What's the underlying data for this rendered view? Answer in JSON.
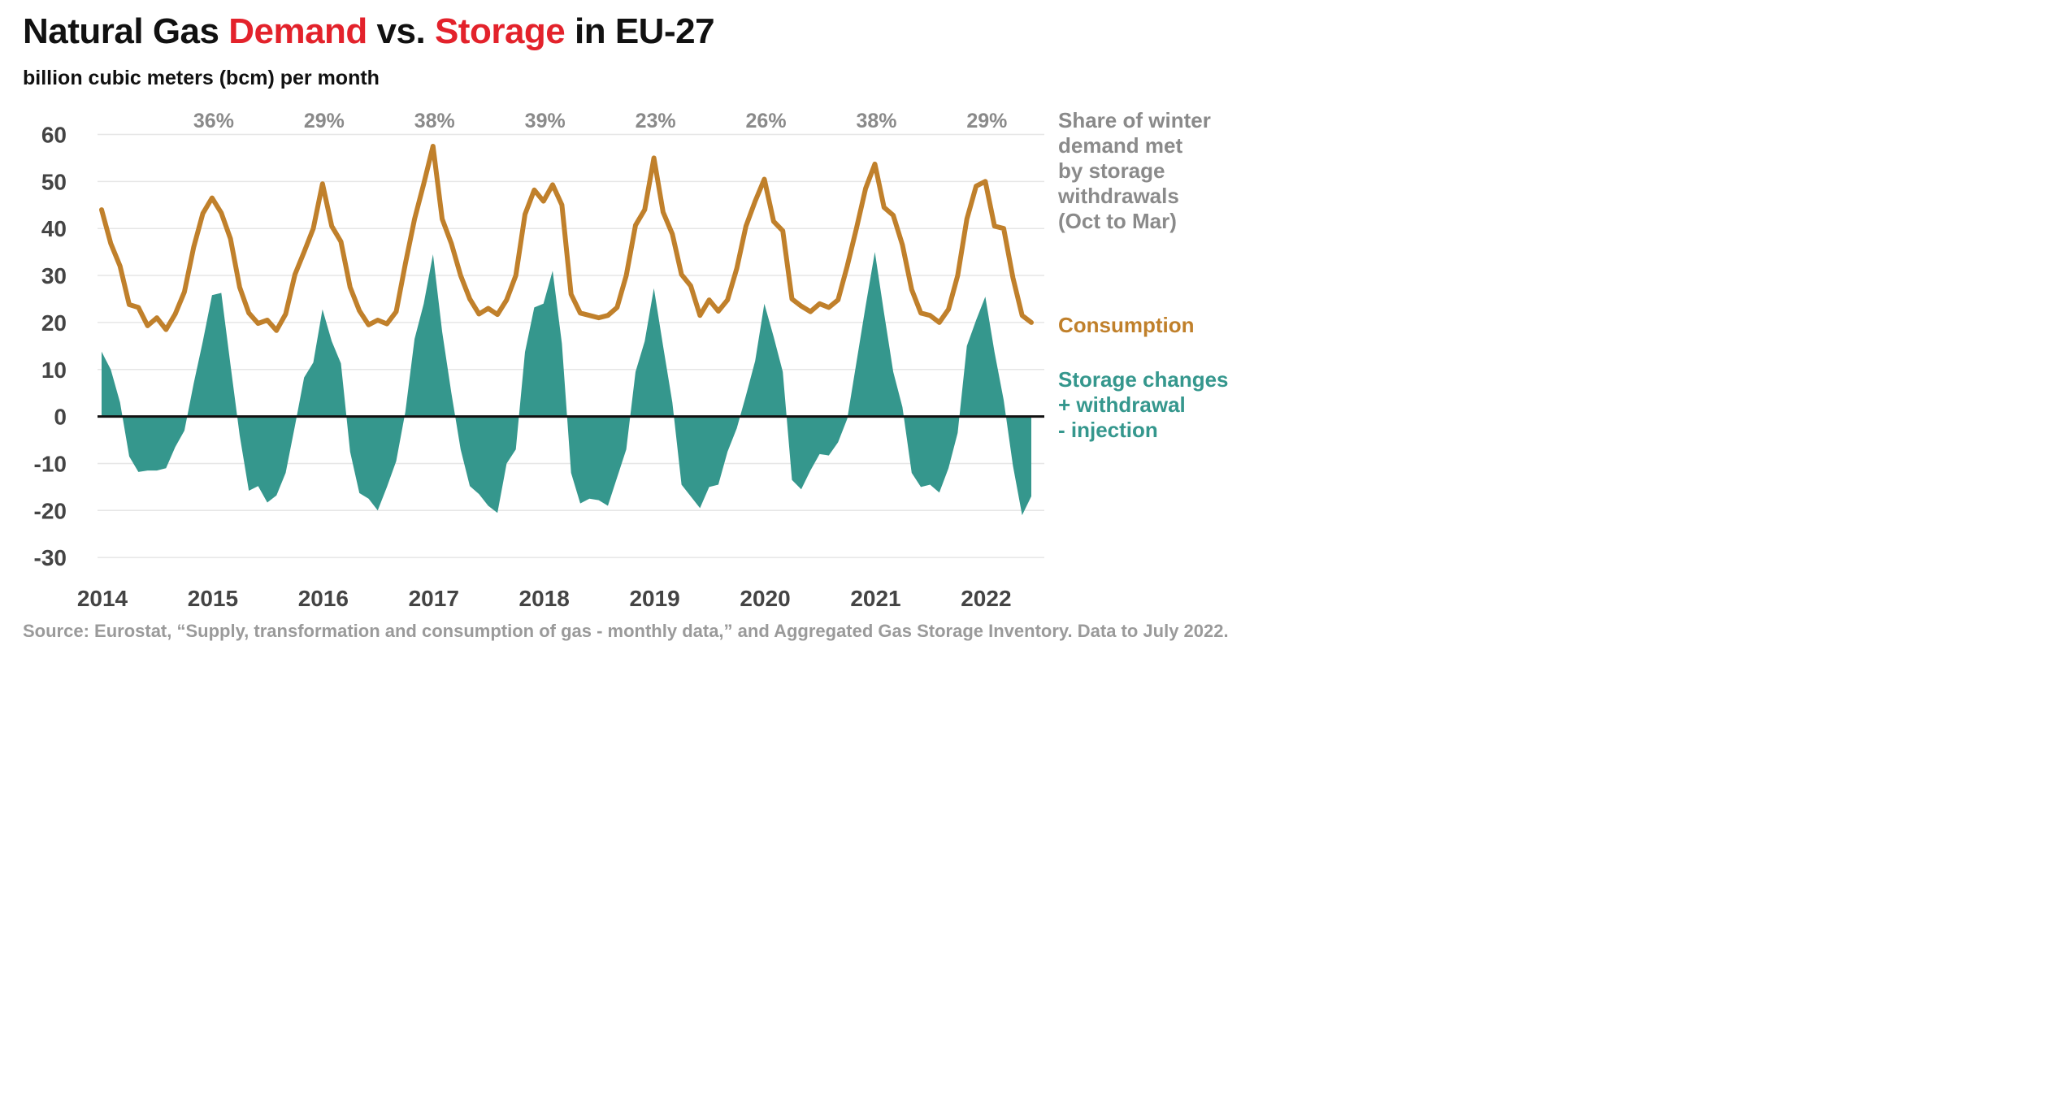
{
  "title": {
    "part1": "Natural Gas ",
    "demand": "Demand",
    "part2": " vs. ",
    "storage": "Storage",
    "part3": " in EU-27"
  },
  "subtitle": "billion cubic meters (bcm) per month",
  "colors": {
    "consumption": "#c0802b",
    "storage": "#35978d",
    "highlight": "#e3222b",
    "share_text": "#8a8a8a",
    "grid": "#e6e6e6"
  },
  "legend": {
    "share_label": "Share of winter\ndemand met\nby storage\nwithdrawals\n(Oct to Mar)",
    "consumption_label": "Consumption",
    "storage_label": "Storage changes\n+ withdrawal\n- injection"
  },
  "source": "Source: Eurostat, “Supply, transformation and consumption of gas - monthly data,” and Aggregated Gas Storage Inventory. Data to July 2022.",
  "chart_data": {
    "type": "line",
    "y_ticks": [
      "60",
      "50",
      "40",
      "30",
      "20",
      "10",
      "0",
      "-10",
      "-20",
      "-30"
    ],
    "ylim": [
      -30,
      60
    ],
    "x_ticks": [
      "2014",
      "2015",
      "2016",
      "2017",
      "2018",
      "2019",
      "2020",
      "2021",
      "2022"
    ],
    "x_start": "2014-01",
    "x_end": "2022-07",
    "winter_share": [
      {
        "winter": "2014-15",
        "label": "36%"
      },
      {
        "winter": "2015-16",
        "label": "29%"
      },
      {
        "winter": "2016-17",
        "label": "38%"
      },
      {
        "winter": "2017-18",
        "label": "39%"
      },
      {
        "winter": "2018-19",
        "label": "23%"
      },
      {
        "winter": "2019-20",
        "label": "26%"
      },
      {
        "winter": "2020-21",
        "label": "38%"
      },
      {
        "winter": "2021-22",
        "label": "29%"
      }
    ],
    "series": [
      {
        "name": "Consumption",
        "type": "line",
        "values": [
          44.0,
          36.8,
          32.0,
          23.8,
          23.2,
          19.3,
          21.0,
          18.5,
          21.8,
          26.5,
          36.0,
          43.2,
          46.5,
          43.3,
          37.8,
          27.5,
          22.0,
          19.8,
          20.5,
          18.3,
          21.8,
          30.2,
          35.0,
          40.0,
          49.5,
          40.5,
          37.2,
          27.5,
          22.5,
          19.5,
          20.5,
          19.7,
          22.3,
          32.5,
          42.0,
          49.5,
          57.5,
          42.0,
          36.8,
          30.0,
          25.0,
          21.8,
          23.0,
          21.7,
          24.8,
          30.0,
          43.0,
          48.2,
          45.8,
          49.3,
          45.0,
          26.0,
          22.0,
          21.5,
          21.0,
          21.5,
          23.2,
          30.0,
          40.7,
          44.0,
          55.0,
          43.5,
          38.8,
          30.2,
          27.8,
          21.5,
          24.8,
          22.4,
          24.8,
          31.5,
          40.5,
          45.8,
          50.5,
          41.5,
          39.5,
          25.0,
          23.5,
          22.3,
          24.0,
          23.2,
          24.8,
          32.0,
          40.0,
          48.5,
          53.7,
          44.5,
          42.8,
          36.5,
          27.0,
          22.0,
          21.5,
          20.0,
          22.8,
          30.0,
          42.0,
          49.0,
          50.0,
          40.5,
          40.0,
          29.5,
          21.5,
          20.0
        ]
      },
      {
        "name": "Storage changes + withdrawal - injection",
        "type": "area",
        "values": [
          13.8,
          10.0,
          3.0,
          -8.5,
          -11.8,
          -11.5,
          -11.5,
          -11.0,
          -6.5,
          -3.0,
          7.0,
          16.0,
          25.8,
          26.3,
          11.0,
          -4.0,
          -15.8,
          -14.8,
          -18.3,
          -16.8,
          -12.0,
          -2.0,
          8.3,
          11.5,
          22.8,
          16.0,
          11.3,
          -7.5,
          -16.3,
          -17.5,
          -20.0,
          -15.0,
          -9.5,
          1.0,
          16.5,
          24.0,
          34.5,
          18.0,
          5.0,
          -7.0,
          -14.8,
          -16.5,
          -19.0,
          -20.5,
          -10.0,
          -7.0,
          13.7,
          23.2,
          24.0,
          31.0,
          15.5,
          -12.0,
          -18.5,
          -17.5,
          -17.8,
          -19.0,
          -13.0,
          -7.0,
          9.5,
          16.0,
          27.3,
          15.0,
          3.0,
          -14.5,
          -17.0,
          -19.5,
          -15.0,
          -14.5,
          -7.5,
          -2.5,
          4.5,
          11.8,
          24.0,
          17.0,
          9.5,
          -13.5,
          -15.5,
          -11.5,
          -8.0,
          -8.3,
          -5.5,
          -0.5,
          11.5,
          23.5,
          35.0,
          22.0,
          9.5,
          2.0,
          -12.0,
          -15.0,
          -14.5,
          -16.2,
          -11.0,
          -3.5,
          15.0,
          20.5,
          25.5,
          13.7,
          3.5,
          -10.5,
          -21.0,
          -17.0
        ]
      }
    ]
  }
}
